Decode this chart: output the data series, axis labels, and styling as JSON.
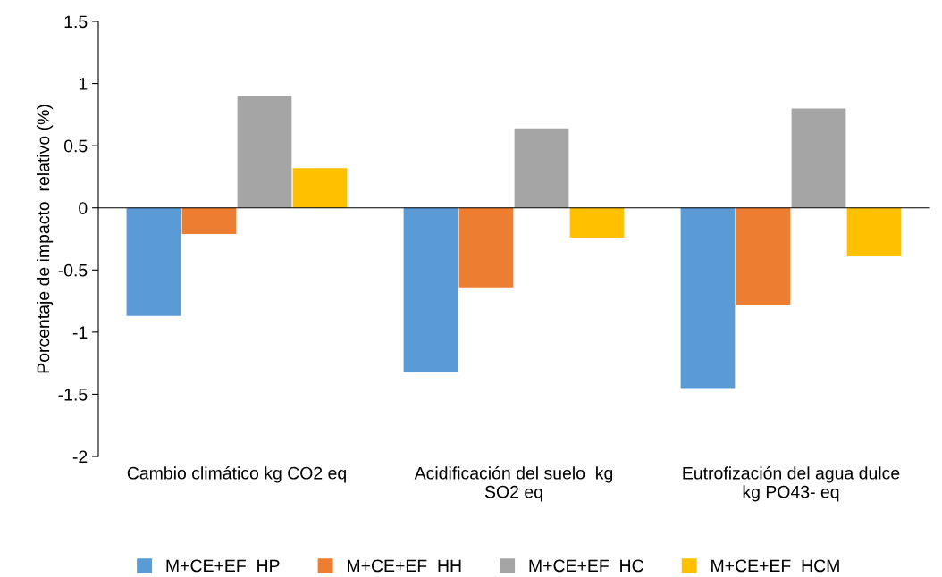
{
  "chart_data": {
    "type": "bar",
    "ylabel": "Porcentaje de impacto  relativo (%)",
    "categories": [
      "Cambio climático kg CO2 eq",
      "Acidificación del suelo  kg\nSO2 eq",
      "Eutrofización del agua dulce\nkg PO43- eq"
    ],
    "series": [
      {
        "name": "M+CE+EF  HP",
        "color": "#5b9bd5",
        "values": [
          -0.87,
          -1.32,
          -1.45
        ]
      },
      {
        "name": "M+CE+EF  HH",
        "color": "#ed7d31",
        "values": [
          -0.21,
          -0.64,
          -0.78
        ]
      },
      {
        "name": "M+CE+EF  HC",
        "color": "#a5a5a5",
        "values": [
          0.9,
          0.64,
          0.8
        ]
      },
      {
        "name": "M+CE+EF  HCM",
        "color": "#ffc000",
        "values": [
          0.32,
          -0.24,
          -0.39
        ]
      }
    ],
    "ylim": [
      -2,
      1.5
    ],
    "yticks": [
      -2,
      -1.5,
      -1,
      -0.5,
      0,
      0.5,
      1,
      1.5
    ],
    "legend": "bottom"
  }
}
